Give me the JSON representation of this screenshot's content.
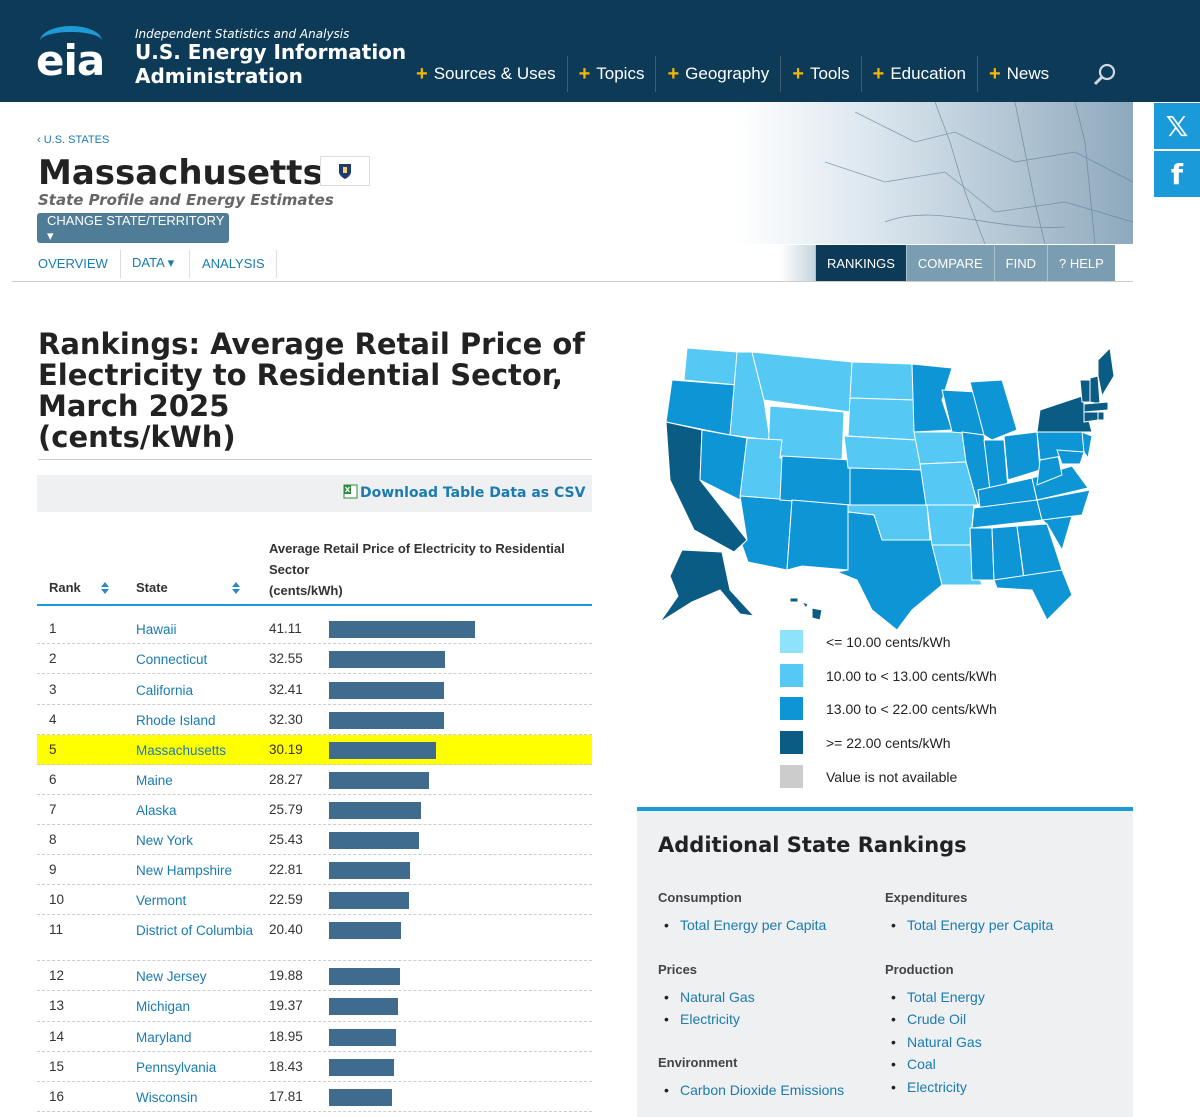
{
  "header": {
    "tagline": "Independent Statistics and Analysis",
    "org_line1": "U.S. Energy Information",
    "org_line2": "Administration",
    "logo_text": "eia",
    "nav": [
      "Sources & Uses",
      "Topics",
      "Geography",
      "Tools",
      "Education",
      "News"
    ]
  },
  "social": {
    "x": "𝕏",
    "facebook": "f"
  },
  "state": {
    "breadcrumb": "‹ U.S. STATES",
    "name": "Massachusetts",
    "subtitle": "State Profile and Energy Estimates",
    "change_button": "CHANGE STATE/TERRITORY ▾"
  },
  "subnav": {
    "overview": "OVERVIEW",
    "data": "DATA ▾",
    "analysis": "ANALYSIS"
  },
  "tabs": {
    "rankings": "RANKINGS",
    "compare": "COMPARE",
    "find": "FIND",
    "help": "?  HELP"
  },
  "ranking": {
    "title": "Rankings: Average Retail Price of Electricity to Residential Sector, March 2025",
    "unit": "(cents/kWh)",
    "download": "Download Table Data as CSV",
    "col_rank": "Rank",
    "col_state": "State",
    "col_value_1": "Average Retail Price of Electricity to Residential",
    "col_value_2": "Sector",
    "col_value_3": "(cents/kWh)",
    "max_value": 41.11,
    "rows": [
      {
        "rank": "1",
        "state": "Hawaii",
        "value": "41.11",
        "num": 41.11
      },
      {
        "rank": "2",
        "state": "Connecticut",
        "value": "32.55",
        "num": 32.55
      },
      {
        "rank": "3",
        "state": "California",
        "value": "32.41",
        "num": 32.41
      },
      {
        "rank": "4",
        "state": "Rhode Island",
        "value": "32.30",
        "num": 32.3
      },
      {
        "rank": "5",
        "state": "Massachusetts",
        "value": "30.19",
        "num": 30.19,
        "highlight": true
      },
      {
        "rank": "6",
        "state": "Maine",
        "value": "28.27",
        "num": 28.27
      },
      {
        "rank": "7",
        "state": "Alaska",
        "value": "25.79",
        "num": 25.79
      },
      {
        "rank": "8",
        "state": "New York",
        "value": "25.43",
        "num": 25.43
      },
      {
        "rank": "9",
        "state": "New Hampshire",
        "value": "22.81",
        "num": 22.81
      },
      {
        "rank": "10",
        "state": "Vermont",
        "value": "22.59",
        "num": 22.59
      },
      {
        "rank": "11",
        "state": "District of Columbia",
        "value": "20.40",
        "num": 20.4
      },
      {
        "rank": "12",
        "state": "New Jersey",
        "value": "19.88",
        "num": 19.88
      },
      {
        "rank": "13",
        "state": "Michigan",
        "value": "19.37",
        "num": 19.37
      },
      {
        "rank": "14",
        "state": "Maryland",
        "value": "18.95",
        "num": 18.95
      },
      {
        "rank": "15",
        "state": "Pennsylvania",
        "value": "18.43",
        "num": 18.43
      },
      {
        "rank": "16",
        "state": "Wisconsin",
        "value": "17.81",
        "num": 17.81
      }
    ]
  },
  "legend": [
    {
      "label": "<= 10.00 cents/kWh",
      "color": "#8ee3fb"
    },
    {
      "label": "10.00 to < 13.00 cents/kWh",
      "color": "#55c8f4"
    },
    {
      "label": "13.00 to < 22.00 cents/kWh",
      "color": "#0e95d6"
    },
    {
      "label": ">= 22.00 cents/kWh",
      "color": "#0b5c84"
    },
    {
      "label": "Value is not available",
      "color": "#cccccc"
    }
  ],
  "additional": {
    "title": "Additional State Rankings",
    "consumption": {
      "label": "Consumption",
      "links": [
        "Total Energy per Capita"
      ]
    },
    "expenditures": {
      "label": "Expenditures",
      "links": [
        "Total Energy per Capita"
      ]
    },
    "prices": {
      "label": "Prices",
      "links": [
        "Natural Gas",
        "Electricity"
      ]
    },
    "production": {
      "label": "Production",
      "links": [
        "Total Energy",
        "Crude Oil",
        "Natural Gas",
        "Coal",
        "Electricity"
      ]
    },
    "environment": {
      "label": "Environment",
      "links": [
        "Carbon Dioxide Emissions"
      ]
    }
  },
  "colors": {
    "brand": "#0c3a57",
    "accent": "#1b9ad9",
    "link": "#1b7bb0",
    "bar": "#3f6b8f",
    "highlight": "#ffff00"
  }
}
